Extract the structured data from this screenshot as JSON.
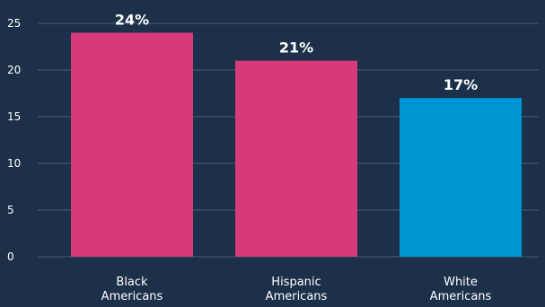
{
  "chart_data": {
    "type": "bar",
    "title": "",
    "xlabel": "",
    "ylabel": "",
    "categories": [
      [
        "Black",
        "Americans"
      ],
      [
        "Hispanic",
        "Americans"
      ],
      [
        "White",
        "Americans"
      ]
    ],
    "values": [
      24,
      21,
      17
    ],
    "data_labels": [
      "24%",
      "21%",
      "17%"
    ],
    "bar_colors": [
      "#d63a78",
      "#d63a78",
      "#0096d6"
    ],
    "ylim": [
      0,
      25
    ],
    "yticks": [
      0,
      5,
      10,
      15,
      20,
      25
    ],
    "grid": true,
    "legend": "none"
  },
  "colors": {
    "background": "#1c3049",
    "text": "#ffffff",
    "grid": "#ffffff"
  }
}
